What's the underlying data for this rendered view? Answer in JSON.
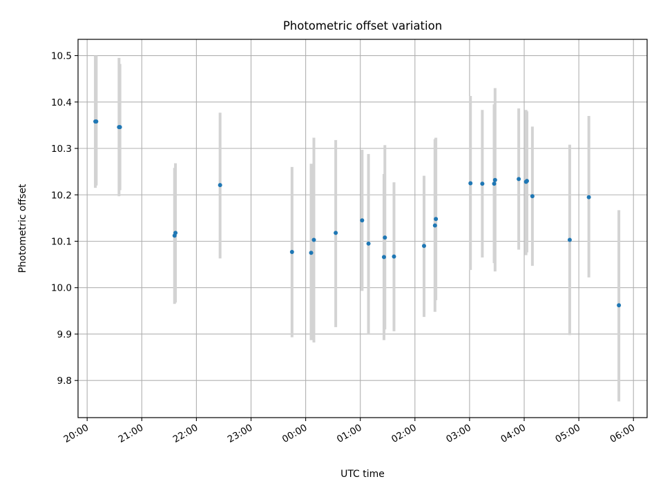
{
  "chart_data": {
    "type": "scatter",
    "title": "Photometric offset variation",
    "xlabel": "UTC time",
    "ylabel": "Photometric offset",
    "x_unit": "hour of night (20:00 = 20, 06:00 = 30)",
    "xlim": [
      "19:50",
      "06:15"
    ],
    "ylim": [
      9.72,
      10.535
    ],
    "grid": true,
    "colors": {
      "point": "#1f77b4",
      "errorbar": "#d3d3d3",
      "grid": "#b0b0b0"
    },
    "x_ticks": [
      "20:00",
      "21:00",
      "22:00",
      "23:00",
      "00:00",
      "01:00",
      "02:00",
      "03:00",
      "04:00",
      "05:00",
      "06:00"
    ],
    "y_ticks": [
      "9.8",
      "9.9",
      "10.0",
      "10.1",
      "10.2",
      "10.3",
      "10.4",
      "10.5"
    ],
    "series": [
      {
        "points": [
          {
            "t": "20:09",
            "y": 10.358,
            "lo": 10.215,
            "hi": 10.5
          },
          {
            "t": "20:10",
            "y": 10.358,
            "lo": 10.22,
            "hi": 10.5
          },
          {
            "t": "20:35",
            "y": 10.346,
            "lo": 10.197,
            "hi": 10.495
          },
          {
            "t": "20:36",
            "y": 10.346,
            "lo": 10.21,
            "hi": 10.482
          },
          {
            "t": "21:36",
            "y": 10.112,
            "lo": 9.965,
            "hi": 10.258
          },
          {
            "t": "21:37",
            "y": 10.118,
            "lo": 9.968,
            "hi": 10.268
          },
          {
            "t": "22:26",
            "y": 10.221,
            "lo": 10.063,
            "hi": 10.377
          },
          {
            "t": "23:45",
            "y": 10.077,
            "lo": 9.893,
            "hi": 10.26
          },
          {
            "t": "00:06",
            "y": 10.075,
            "lo": 9.887,
            "hi": 10.267
          },
          {
            "t": "00:09",
            "y": 10.103,
            "lo": 9.882,
            "hi": 10.323
          },
          {
            "t": "00:33",
            "y": 10.118,
            "lo": 9.915,
            "hi": 10.318
          },
          {
            "t": "01:02",
            "y": 10.145,
            "lo": 9.993,
            "hi": 10.297
          },
          {
            "t": "01:09",
            "y": 10.095,
            "lo": 9.9,
            "hi": 10.288
          },
          {
            "t": "01:26",
            "y": 10.066,
            "lo": 9.887,
            "hi": 10.245
          },
          {
            "t": "01:27",
            "y": 10.108,
            "lo": 9.91,
            "hi": 10.307
          },
          {
            "t": "01:37",
            "y": 10.067,
            "lo": 9.906,
            "hi": 10.227
          },
          {
            "t": "02:10",
            "y": 10.09,
            "lo": 9.937,
            "hi": 10.241
          },
          {
            "t": "02:22",
            "y": 10.134,
            "lo": 9.948,
            "hi": 10.32
          },
          {
            "t": "02:23",
            "y": 10.148,
            "lo": 9.973,
            "hi": 10.323
          },
          {
            "t": "03:01",
            "y": 10.225,
            "lo": 10.038,
            "hi": 10.413
          },
          {
            "t": "03:14",
            "y": 10.224,
            "lo": 10.065,
            "hi": 10.383
          },
          {
            "t": "03:27",
            "y": 10.224,
            "lo": 10.053,
            "hi": 10.395
          },
          {
            "t": "03:28",
            "y": 10.232,
            "lo": 10.035,
            "hi": 10.43
          },
          {
            "t": "03:54",
            "y": 10.234,
            "lo": 10.082,
            "hi": 10.386
          },
          {
            "t": "04:02",
            "y": 10.228,
            "lo": 10.07,
            "hi": 10.383
          },
          {
            "t": "04:03",
            "y": 10.23,
            "lo": 10.076,
            "hi": 10.38
          },
          {
            "t": "04:09",
            "y": 10.197,
            "lo": 10.047,
            "hi": 10.347
          },
          {
            "t": "04:50",
            "y": 10.103,
            "lo": 9.898,
            "hi": 10.308
          },
          {
            "t": "05:11",
            "y": 10.195,
            "lo": 10.022,
            "hi": 10.37
          },
          {
            "t": "05:44",
            "y": 9.962,
            "lo": 9.755,
            "hi": 10.167
          }
        ]
      }
    ]
  }
}
